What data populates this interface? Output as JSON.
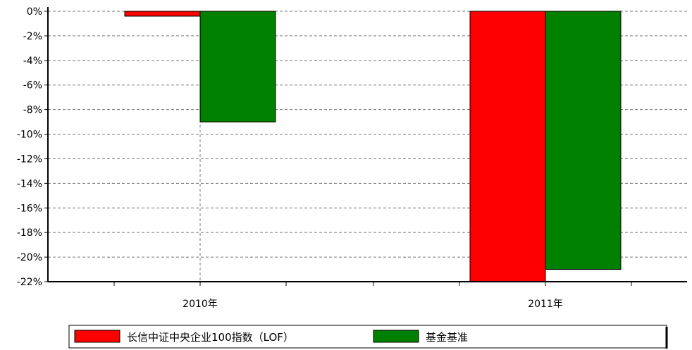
{
  "chart_data": {
    "type": "bar",
    "categories": [
      "2010年",
      "2011年"
    ],
    "series": [
      {
        "name": "长信中证中央企业100指数（LOF）",
        "color": "#ff0000",
        "values": [
          -0.4,
          -22.0
        ]
      },
      {
        "name": "基金基准",
        "color": "#008000",
        "values": [
          -9.0,
          -21.0
        ]
      }
    ],
    "ylim": [
      -22,
      0
    ],
    "yticks": [
      0,
      -2,
      -4,
      -6,
      -8,
      -10,
      -12,
      -14,
      -16,
      -18,
      -20,
      -22
    ],
    "ytick_labels": [
      "0%",
      "-2%",
      "-4%",
      "-6%",
      "-8%",
      "-10%",
      "-12%",
      "-14%",
      "-16%",
      "-18%",
      "-20%",
      "-22%"
    ],
    "grid": true,
    "legend_position": "bottom"
  }
}
